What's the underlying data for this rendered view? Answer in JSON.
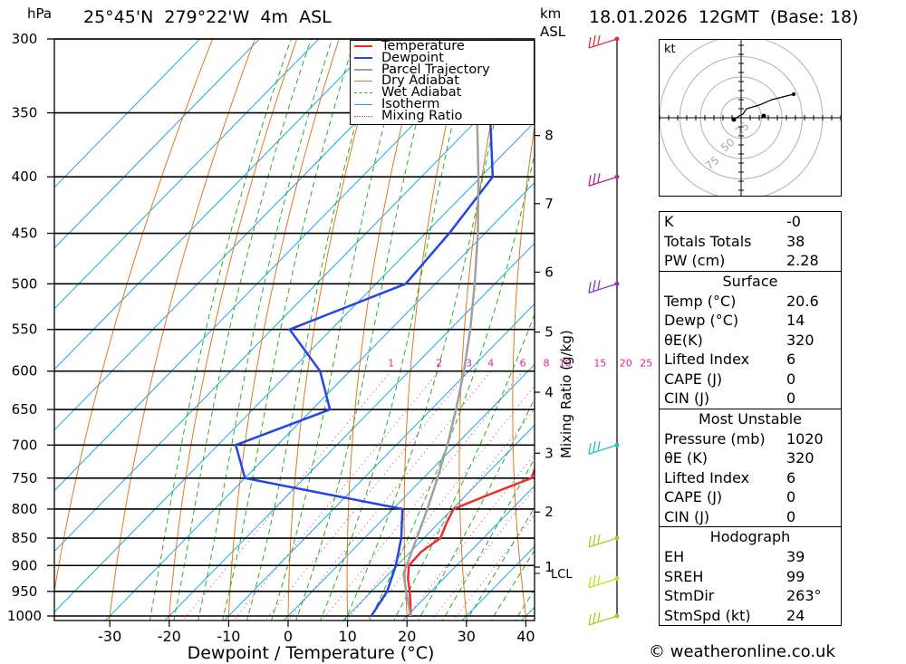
{
  "header": {
    "location": "25°45'N  279°22'W  4m  ASL",
    "date": "18.01.2026  12GMT  (Base: 18)",
    "hpa_unit": "hPa",
    "km_unit": "km",
    "asl_unit": "ASL"
  },
  "colors": {
    "temperature": "#e8302e",
    "dewpoint": "#2244e8",
    "parcel": "#a0a0a0",
    "dry_adiabat": "#e07820",
    "wet_adiabat": "#22b022",
    "isotherm": "#1aa8e8",
    "mixing_ratio": "#e020a0",
    "wind_barb": "#b0d020"
  },
  "chart_data": {
    "type": "line",
    "xlabel": "Dewpoint / Temperature (°C)",
    "x_ticks": [
      "-30",
      "-20",
      "-10",
      "0",
      "10",
      "20",
      "30",
      "40"
    ],
    "x_tick_values": [
      -30,
      -20,
      -10,
      0,
      10,
      20,
      30,
      40
    ],
    "pressure_levels": [
      300,
      350,
      400,
      450,
      500,
      550,
      600,
      650,
      700,
      750,
      800,
      850,
      900,
      950,
      1000
    ],
    "pressure_labels": [
      "300",
      "350",
      "400",
      "450",
      "500",
      "550",
      "600",
      "650",
      "700",
      "750",
      "800",
      "850",
      "900",
      "950",
      "1000"
    ],
    "km_labels": [
      "8",
      "7",
      "6",
      "5",
      "4",
      "3",
      "2",
      "1"
    ],
    "km_pressures": [
      367,
      423,
      488,
      553,
      627,
      712,
      805,
      903
    ],
    "lcl_label": "LCL",
    "lcl_pressure": 915,
    "mixing_ratio_axis_label": "Mixing Ratio (g/kg)",
    "mixing_ratio_labels": [
      "1",
      "2",
      "3",
      "4",
      "6",
      "8",
      "10",
      "15",
      "20",
      "25"
    ],
    "mixing_ratio_values": [
      1,
      2,
      3,
      4,
      6,
      8,
      10,
      15,
      20,
      25
    ],
    "legend": [
      {
        "label": "Temperature",
        "color": "#e8302e",
        "style": "solid"
      },
      {
        "label": "Dewpoint",
        "color": "#2244e8",
        "style": "solid"
      },
      {
        "label": "Parcel Trajectory",
        "color": "#a0a0a0",
        "style": "solid"
      },
      {
        "label": "Dry Adiabat",
        "color": "#e07820",
        "style": "solid"
      },
      {
        "label": "Wet Adiabat",
        "color": "#22b022",
        "style": "dashed"
      },
      {
        "label": "Isotherm",
        "color": "#1aa8e8",
        "style": "solid"
      },
      {
        "label": "Mixing Ratio",
        "color": "#e020a0",
        "style": "dotted"
      }
    ],
    "series": [
      {
        "name": "Temperature",
        "p": [
          1000,
          975,
          950,
          925,
          900,
          875,
          850,
          825,
          800,
          775,
          750,
          700,
          650,
          600,
          550,
          500,
          450,
          400,
          350,
          300
        ],
        "t": [
          20.6,
          18.6,
          16.4,
          14.0,
          12.0,
          11.8,
          12.8,
          11.4,
          10.2,
          14.0,
          18.2,
          14.8,
          10.4,
          5.6,
          0.2,
          -6.0,
          -13.4,
          -22.2,
          -32.4,
          -44.6
        ]
      },
      {
        "name": "Dewpoint",
        "p": [
          1000,
          950,
          900,
          850,
          800,
          750,
          700,
          650,
          600,
          550,
          500,
          450,
          400,
          350,
          300
        ],
        "t": [
          14.0,
          12.6,
          9.8,
          6.2,
          1.6,
          -30.0,
          -37.0,
          -27.0,
          -35.0,
          -47.0,
          -35.0,
          -36.0,
          -38.0,
          -49.0,
          -62.0
        ]
      },
      {
        "name": "Parcel Trajectory",
        "p": [
          1000,
          950,
          915,
          900,
          850,
          800,
          750,
          700,
          650,
          600,
          550,
          500,
          450,
          400,
          350,
          300
        ],
        "t": [
          20.6,
          15.8,
          12.4,
          11.6,
          8.8,
          5.8,
          2.4,
          -1.4,
          -5.8,
          -10.8,
          -16.6,
          -23.4,
          -31.2,
          -40.4,
          -51.2,
          -63.0
        ]
      }
    ],
    "wind_barb_pressures": [
      300,
      400,
      500,
      700,
      850,
      925,
      1000
    ]
  },
  "hodograph": {
    "unit": "kt",
    "ring_labels": [
      "25",
      "50",
      "75"
    ]
  },
  "indices": {
    "general": [
      {
        "label": "K",
        "value": "-0"
      },
      {
        "label": "Totals Totals",
        "value": "38"
      },
      {
        "label": "PW (cm)",
        "value": "2.28"
      }
    ],
    "surface": {
      "title": "Surface",
      "rows": [
        {
          "label": "Temp (°C)",
          "value": "20.6"
        },
        {
          "label": "Dewp (°C)",
          "value": "14"
        },
        {
          "label": "θE(K)",
          "value": "320"
        },
        {
          "label": "Lifted Index",
          "value": "6"
        },
        {
          "label": "CAPE (J)",
          "value": "0"
        },
        {
          "label": "CIN (J)",
          "value": "0"
        }
      ]
    },
    "most_unstable": {
      "title": "Most Unstable",
      "rows": [
        {
          "label": "Pressure (mb)",
          "value": "1020"
        },
        {
          "label": "θE (K)",
          "value": "320"
        },
        {
          "label": "Lifted Index",
          "value": "6"
        },
        {
          "label": "CAPE (J)",
          "value": "0"
        },
        {
          "label": "CIN (J)",
          "value": "0"
        }
      ]
    },
    "hodograph": {
      "title": "Hodograph",
      "rows": [
        {
          "label": "EH",
          "value": "39"
        },
        {
          "label": "SREH",
          "value": "99"
        },
        {
          "label": "StmDir",
          "value": "263°"
        },
        {
          "label": "StmSpd (kt)",
          "value": "24"
        }
      ]
    }
  },
  "footer": {
    "copyright": "© weatheronline.co.uk"
  }
}
